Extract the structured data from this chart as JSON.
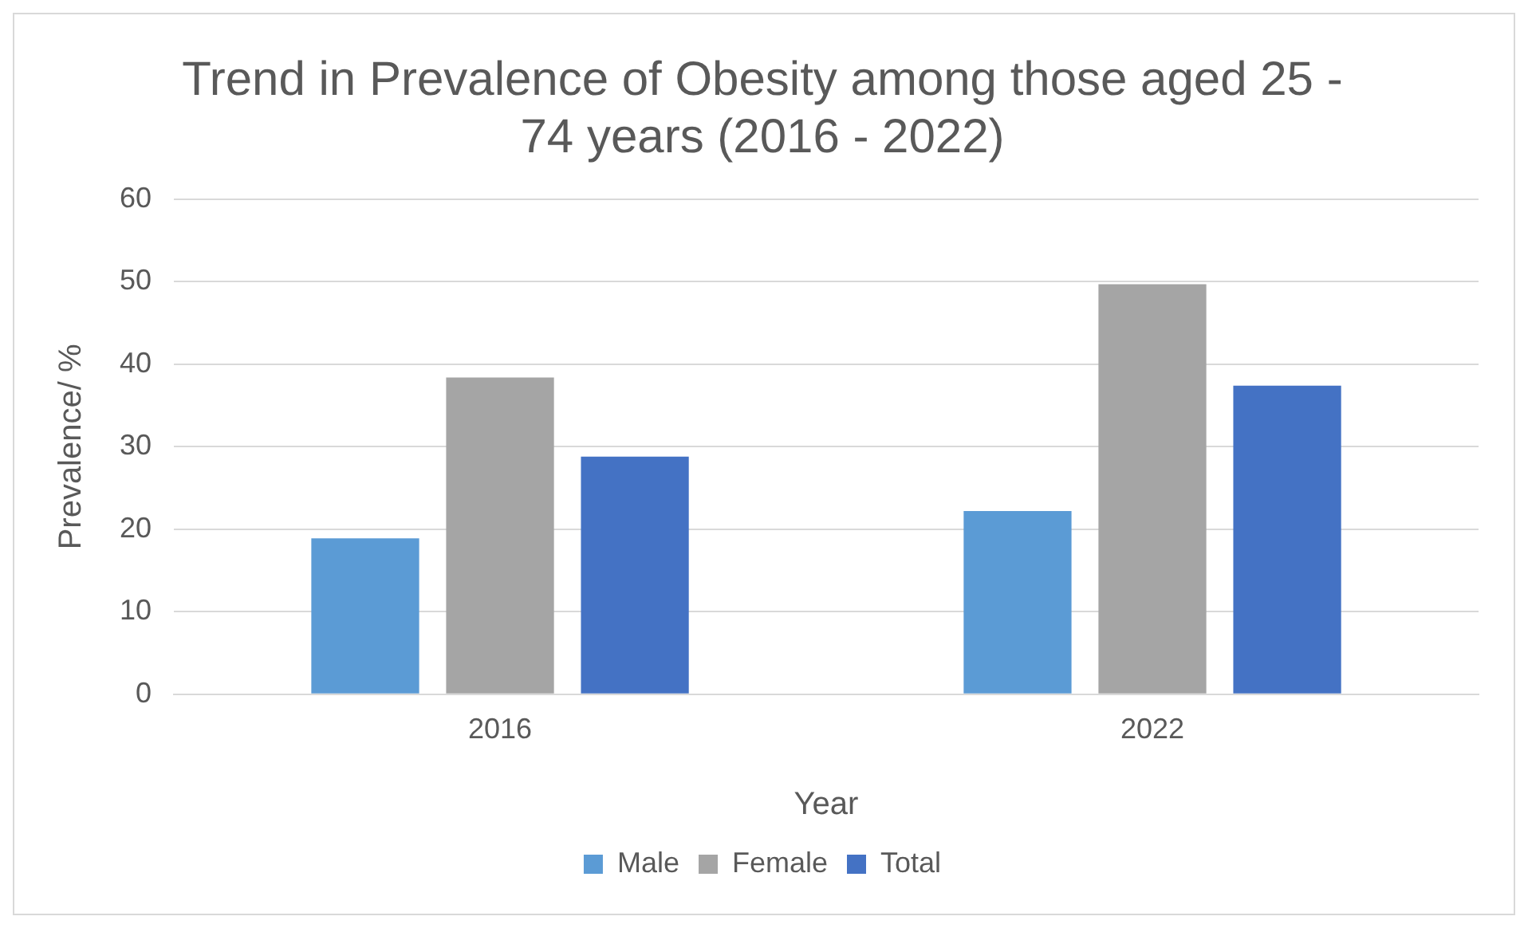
{
  "chart_data": {
    "type": "bar",
    "title": "Trend in Prevalence of Obesity among those aged 25 - 74 years (2016 - 2022)",
    "xlabel": "Year",
    "ylabel": "Prevalence/ %",
    "categories": [
      "2016",
      "2022"
    ],
    "series": [
      {
        "name": "Male",
        "color": "#5b9bd5",
        "values": [
          18.9,
          22.2
        ]
      },
      {
        "name": "Female",
        "color": "#a5a5a5",
        "values": [
          38.4,
          49.7
        ]
      },
      {
        "name": "Total",
        "color": "#4472c4",
        "values": [
          28.8,
          37.4
        ]
      }
    ],
    "ylim": [
      0,
      60
    ],
    "yticks": [
      0,
      10,
      20,
      30,
      40,
      50,
      60
    ],
    "grid": "y",
    "legend": "bottom"
  }
}
